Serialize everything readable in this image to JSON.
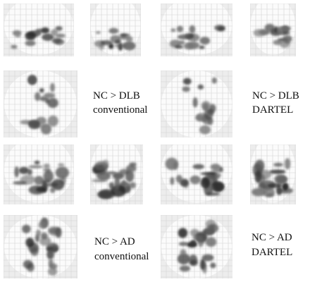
{
  "panels": [
    {
      "label_lines": [
        "NC > DLB",
        "conventional"
      ]
    },
    {
      "label_lines": [
        "NC > DLB",
        "DARTEL"
      ]
    },
    {
      "label_lines": [
        "NC > AD",
        "conventional"
      ]
    },
    {
      "label_lines": [
        "NC > AD",
        "DARTEL"
      ]
    }
  ]
}
